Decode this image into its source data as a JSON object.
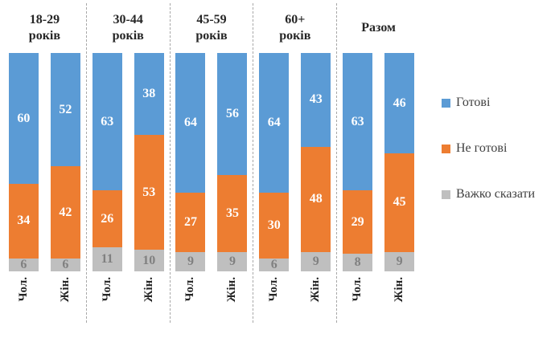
{
  "chart_data": {
    "type": "bar",
    "subtype": "100-percent-stacked-column",
    "orientation": "vertical",
    "legend_position": "right",
    "grid": false,
    "value_labels": true,
    "separator_color": "#a8a8a8",
    "text_color": "#262626",
    "legend_text_color": "#404040",
    "series": [
      {
        "name": "Готові",
        "color": "#5B9BD5",
        "label_color": "#ffffff"
      },
      {
        "name": "Не готові",
        "color": "#ED7D31",
        "label_color": "#ffffff"
      },
      {
        "name": "Важко сказати",
        "color": "#BFBFBF",
        "label_color": "#808080"
      }
    ],
    "groups": [
      {
        "title": "18-29 років",
        "title_lines": [
          "18-29",
          "років"
        ],
        "bars": [
          {
            "label": "Чол.",
            "values": [
              60,
              34,
              6
            ]
          },
          {
            "label": "Жін.",
            "values": [
              52,
              42,
              6
            ]
          }
        ]
      },
      {
        "title": "30-44 років",
        "title_lines": [
          "30-44",
          "років"
        ],
        "bars": [
          {
            "label": "Чол.",
            "values": [
              63,
              26,
              11
            ]
          },
          {
            "label": "Жін.",
            "values": [
              38,
              53,
              10
            ]
          }
        ]
      },
      {
        "title": "45-59 років",
        "title_lines": [
          "45-59",
          "років"
        ],
        "bars": [
          {
            "label": "Чол.",
            "values": [
              64,
              27,
              9
            ]
          },
          {
            "label": "Жін.",
            "values": [
              56,
              35,
              9
            ]
          }
        ]
      },
      {
        "title": "60+ років",
        "title_lines": [
          "60+",
          "років"
        ],
        "bars": [
          {
            "label": "Чол.",
            "values": [
              64,
              30,
              6
            ]
          },
          {
            "label": "Жін.",
            "values": [
              43,
              48,
              9
            ]
          }
        ]
      },
      {
        "title": "Разом",
        "title_lines": [
          "Разом"
        ],
        "bars": [
          {
            "label": "Чол.",
            "values": [
              63,
              29,
              8
            ]
          },
          {
            "label": "Жін.",
            "values": [
              46,
              45,
              9
            ]
          }
        ]
      }
    ]
  }
}
